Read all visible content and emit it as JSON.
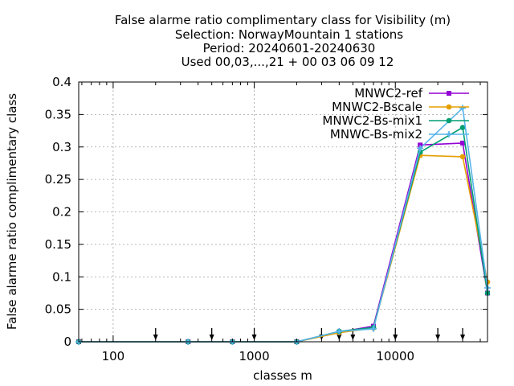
{
  "chart_data": {
    "type": "line",
    "title_lines": [
      "False alarme ratio complimentary class  for Visibility (m)",
      "Selection: NorwayMountain      1 stations",
      "Period: 20240601-20240630",
      "Used 00,03,...,21 + 00 03 06 09 12"
    ],
    "xlabel": "classes m",
    "ylabel": "False alarme ratio complimentary class",
    "x_scale": "log",
    "xlim": [
      57,
      45000
    ],
    "ylim": [
      0,
      0.4
    ],
    "x_ticks": [
      100,
      1000,
      10000
    ],
    "x_tick_labels": [
      "100",
      "1000",
      "10000"
    ],
    "y_ticks": [
      0,
      0.05,
      0.1,
      0.15,
      0.2,
      0.25,
      0.3,
      0.35,
      0.4
    ],
    "y_tick_labels": [
      "0",
      "0.05",
      "0.1",
      "0.15",
      "0.2",
      "0.25",
      "0.3",
      "0.35",
      "0.4"
    ],
    "grid": true,
    "legend_position": "top-right",
    "arrow_markers_x": [
      200,
      500,
      1000,
      3000,
      4000,
      5000,
      10000,
      20000,
      30000
    ],
    "x": [
      57,
      340,
      700,
      2000,
      4000,
      7000,
      15000,
      30000,
      45000
    ],
    "series": [
      {
        "name": "MNWC2-ref",
        "color": "#9400d3",
        "marker": "square",
        "values": [
          0,
          0,
          0,
          0,
          0.015,
          0.024,
          0.303,
          0.306,
          0.075
        ]
      },
      {
        "name": "MNWC2-Bscale",
        "color": "#e69f00",
        "marker": "circle",
        "values": [
          0,
          0,
          0,
          0,
          0.014,
          0.021,
          0.287,
          0.285,
          0.092
        ]
      },
      {
        "name": "MNWC2-Bs-mix1",
        "color": "#009e73",
        "marker": "circle",
        "values": [
          0,
          0,
          0,
          0,
          0.016,
          0.022,
          0.292,
          0.33,
          0.075
        ]
      },
      {
        "name": "MNWC-Bs-mix2",
        "color": "#56b4e9",
        "marker": "cross",
        "values": [
          0,
          0,
          0,
          0,
          0.016,
          0.02,
          0.298,
          0.36,
          0.083
        ]
      }
    ]
  }
}
